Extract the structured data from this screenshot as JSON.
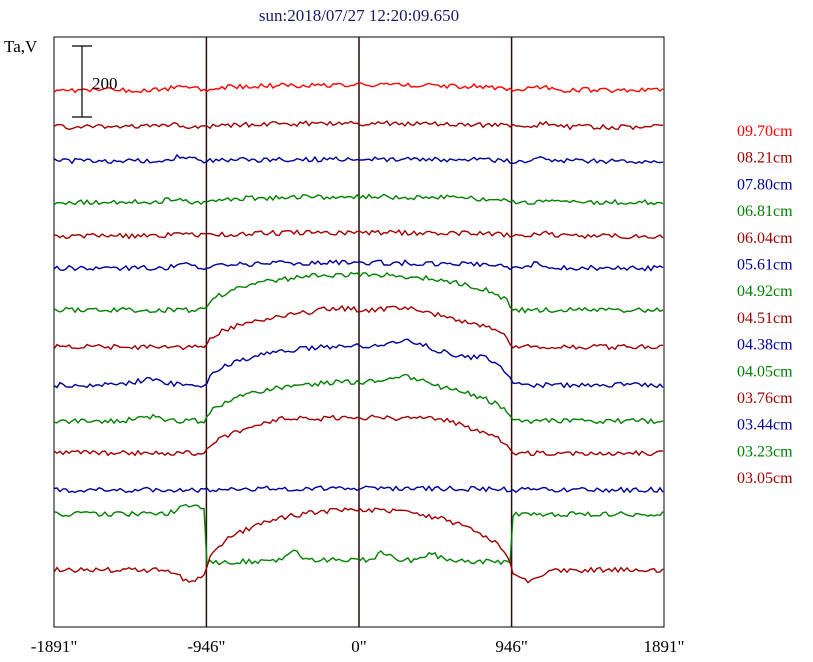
{
  "chart_data": {
    "type": "line",
    "title": "sun:2018/07/27 12:20:09.650",
    "ylabel": "Ta,V",
    "scale_bar_label": "200",
    "xlim": [
      -1891,
      1891
    ],
    "x_ticks": [
      {
        "value": -1891,
        "label": "-1891\""
      },
      {
        "value": -946,
        "label": "-946\""
      },
      {
        "value": 0,
        "label": "0\""
      },
      {
        "value": 946,
        "label": "946\""
      },
      {
        "value": 1891,
        "label": "1891\""
      }
    ],
    "limb_lines": [
      -946,
      0,
      946
    ],
    "legend_placement": "right",
    "series": [
      {
        "name": "09.70cm",
        "color": "#ff0000",
        "offset": 0,
        "rise": 15,
        "limb_step": 0,
        "bumps": [
          [
            -1100,
            10,
            60
          ],
          [
            1100,
            10,
            60
          ]
        ]
      },
      {
        "name": "08.21cm",
        "color": "#a00000",
        "offset": 37,
        "rise": 10,
        "limb_step": 0,
        "bumps": [
          [
            -1200,
            8,
            60
          ],
          [
            1150,
            8,
            60
          ]
        ]
      },
      {
        "name": "07.80cm",
        "color": "#000099",
        "offset": 71,
        "rise": 5,
        "limb_step": 0,
        "bumps": [
          [
            -1100,
            12,
            50
          ],
          [
            1130,
            10,
            50
          ]
        ]
      },
      {
        "name": "06.81cm",
        "color": "#008000",
        "offset": 112,
        "rise": 15,
        "limb_step": 0,
        "bumps": [
          [
            -1150,
            6,
            60
          ]
        ]
      },
      {
        "name": "06.04cm",
        "color": "#a00000",
        "offset": 146,
        "rise": 10,
        "limb_step": 0,
        "bumps": [
          [
            -1100,
            10,
            50
          ],
          [
            1150,
            8,
            50
          ]
        ]
      },
      {
        "name": "05.61cm",
        "color": "#000099",
        "offset": 178,
        "rise": 15,
        "limb_step": 0,
        "bumps": [
          [
            -1100,
            15,
            40
          ],
          [
            1100,
            12,
            40
          ]
        ]
      },
      {
        "name": "04.92cm",
        "color": "#008000",
        "offset": 220,
        "rise": 100,
        "limb_step": 0,
        "bumps": []
      },
      {
        "name": "04.51cm",
        "color": "#a00000",
        "offset": 257,
        "rise": 100,
        "limb_step": 0,
        "bumps": [
          [
            -150,
            10,
            120
          ],
          [
            300,
            15,
            120
          ]
        ]
      },
      {
        "name": "04.38cm",
        "color": "#000099",
        "offset": 295,
        "rise": 110,
        "limb_step": 0,
        "bumps": [
          [
            -1300,
            15,
            80
          ],
          [
            300,
            20,
            100
          ],
          [
            800,
            15,
            60
          ]
        ]
      },
      {
        "name": "04.05cm",
        "color": "#008000",
        "offset": 331,
        "rise": 110,
        "limb_step": 0,
        "bumps": [
          [
            -1300,
            12,
            80
          ],
          [
            300,
            20,
            100
          ]
        ]
      },
      {
        "name": "03.76cm",
        "color": "#a00000",
        "offset": 363,
        "rise": 100,
        "limb_step": 0,
        "bumps": [
          [
            -500,
            10,
            100
          ],
          [
            500,
            10,
            100
          ]
        ]
      },
      {
        "name": "03.44cm",
        "color": "#000099",
        "offset": 400,
        "rise": 5,
        "limb_step": 0,
        "bumps": []
      },
      {
        "name": "03.23cm",
        "color": "#008000",
        "offset": 424,
        "rise": 10,
        "limb_step": -140,
        "bumps": [
          [
            -1050,
            25,
            60
          ],
          [
            -400,
            25,
            40
          ],
          [
            150,
            20,
            40
          ],
          [
            450,
            20,
            40
          ]
        ]
      },
      {
        "name": "03.05cm",
        "color": "#a00000",
        "offset": 480,
        "rise": 170,
        "limb_step": 0,
        "bumps": [
          [
            -1050,
            -30,
            60
          ],
          [
            1050,
            -30,
            60
          ]
        ]
      }
    ]
  }
}
